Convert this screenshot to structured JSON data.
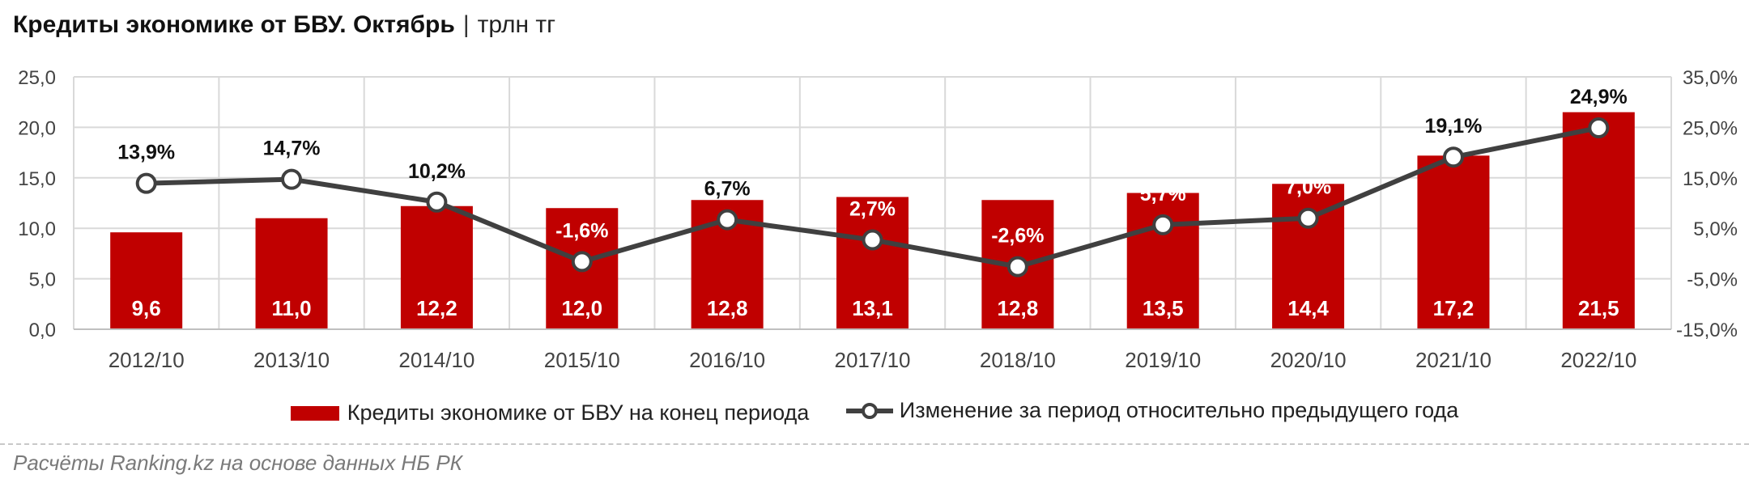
{
  "header": {
    "title": "Кредиты экономике от БВУ. Октябрь",
    "separator": "|",
    "unit": "трлн тг"
  },
  "legend": {
    "bar_label": "Кредиты экономике от БВУ на конец периода",
    "line_label": "Изменение за период относительно предыдущего года"
  },
  "footer": {
    "source": "Расчёты Ranking.kz на основе данных НБ РК"
  },
  "colors": {
    "bar": "#c00000",
    "line": "#404040",
    "grid": "#d9d9d9",
    "axis_text": "#444444"
  },
  "chart_data": {
    "type": "bar",
    "categories": [
      "2012/10",
      "2013/10",
      "2014/10",
      "2015/10",
      "2016/10",
      "2017/10",
      "2018/10",
      "2019/10",
      "2020/10",
      "2021/10",
      "2022/10"
    ],
    "series": [
      {
        "name": "Кредиты экономике от БВУ на конец периода",
        "type": "bar",
        "axis": "left",
        "values": [
          9.6,
          11.0,
          12.2,
          12.0,
          12.8,
          13.1,
          12.8,
          13.5,
          14.4,
          17.2,
          21.5
        ],
        "labels": [
          "9,6",
          "11,0",
          "12,2",
          "12,0",
          "12,8",
          "13,1",
          "12,8",
          "13,5",
          "14,4",
          "17,2",
          "21,5"
        ]
      },
      {
        "name": "Изменение за период относительно предыдущего года",
        "type": "line",
        "axis": "right",
        "values": [
          13.9,
          14.7,
          10.2,
          -1.6,
          6.7,
          2.7,
          -2.6,
          5.7,
          7.0,
          19.1,
          24.9
        ],
        "labels": [
          "13,9%",
          "14,7%",
          "10,2%",
          "-1,6%",
          "6,7%",
          "2,7%",
          "-2,6%",
          "5,7%",
          "7,0%",
          "19,1%",
          "24,9%"
        ]
      }
    ],
    "y_left": {
      "min": 0,
      "max": 25,
      "step": 5,
      "tick_labels": [
        "0,0",
        "5,0",
        "10,0",
        "15,0",
        "20,0",
        "25,0"
      ]
    },
    "y_right": {
      "min": -15,
      "max": 35,
      "step": 10,
      "tick_labels": [
        "-15,0%",
        "-5,0%",
        "5,0%",
        "15,0%",
        "25,0%",
        "35,0%"
      ]
    },
    "grid": true,
    "legend_position": "bottom"
  }
}
